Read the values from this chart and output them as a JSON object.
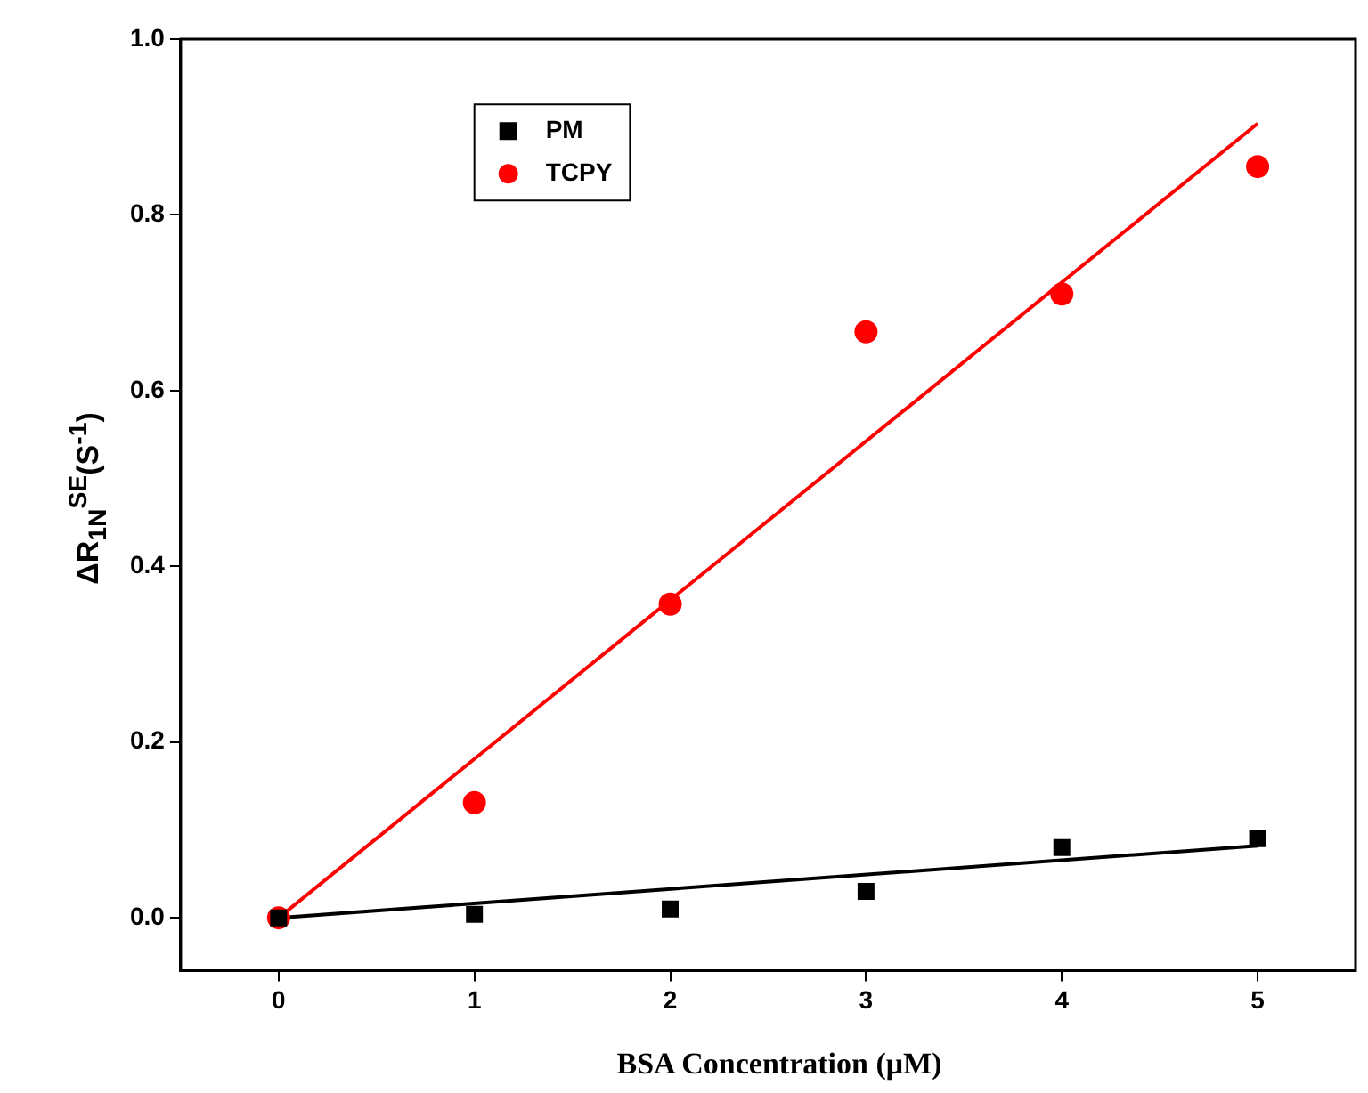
{
  "chart_data": {
    "type": "scatter",
    "xlabel": "BSA Concentration (μM)",
    "ylabel": "ΔR$_{1N}$$^{SE}$(S$^{-1}$)",
    "xlim": [
      -0.5,
      5.5
    ],
    "ylim": [
      -0.06,
      1.0
    ],
    "xticks": [
      0,
      1,
      2,
      3,
      4,
      5
    ],
    "yticks": [
      {
        "value": 0,
        "label": "0.0"
      },
      {
        "value": 0.2,
        "label": "0.2"
      },
      {
        "value": 0.4,
        "label": "0.4"
      },
      {
        "value": 0.6,
        "label": "0.6"
      },
      {
        "value": 0.8,
        "label": "0.8"
      },
      {
        "value": 1.0,
        "label": "1.0"
      }
    ],
    "grid": false,
    "legend": "top left",
    "series": [
      {
        "name": "PM",
        "type": "scatter",
        "marker": "square",
        "color": "#000000",
        "x": [
          0,
          1,
          2,
          3,
          4,
          5
        ],
        "values": [
          0,
          0.004,
          0.01,
          0.03,
          0.08,
          0.09
        ]
      },
      {
        "name": "TCPY",
        "type": "scatter",
        "marker": "circle",
        "color": "#ff0000",
        "x": [
          0,
          1,
          2,
          3,
          4,
          5
        ],
        "values": [
          0,
          0.131,
          0.357,
          0.667,
          0.71,
          0.855
        ]
      },
      {
        "type": "line",
        "line_style": "solid",
        "color": "#000000",
        "x": [
          0,
          5
        ],
        "values": [
          0,
          0.082
        ]
      },
      {
        "type": "line",
        "line_style": "solid",
        "color": "#ff0000",
        "x": [
          0,
          5
        ],
        "values": [
          0,
          0.904
        ]
      }
    ]
  }
}
